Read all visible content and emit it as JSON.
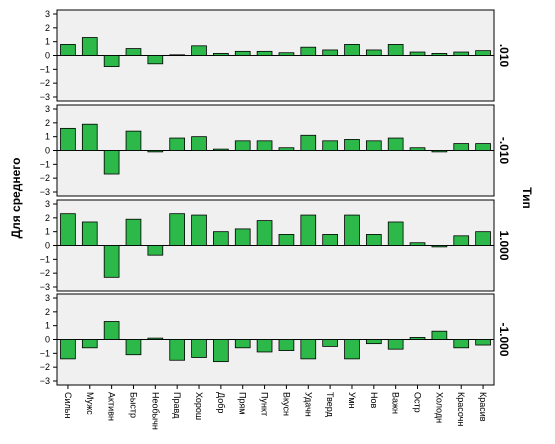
{
  "chart_data": {
    "type": "bar",
    "ylabel": "Для среднего",
    "side_label": "Тип",
    "ylim": [
      -3,
      3
    ],
    "yticks": [
      3,
      2,
      1,
      0,
      -1,
      -2,
      -3
    ],
    "ytick_labels": [
      "3",
      "2",
      "1",
      "0",
      "−1",
      "−2",
      "−3"
    ],
    "bar_color": "#2db84a",
    "panel_bg": "#f0f0f0",
    "categories": [
      "Сильн",
      "Мужс",
      "Активн",
      "Быстр",
      "Необычн",
      "Правд",
      "Хорош",
      "Добр",
      "Прям",
      "Пункт",
      "Вкусн",
      "Удачн",
      "Тверд",
      "Умн",
      "Нов",
      "Важн",
      "Остр",
      "Холодн",
      "Красочн",
      "Красив"
    ],
    "panels": [
      {
        "label": ".010",
        "values": [
          0.8,
          1.3,
          -0.8,
          0.5,
          -0.6,
          0.05,
          0.7,
          0.15,
          0.3,
          0.3,
          0.2,
          0.6,
          0.4,
          0.8,
          0.4,
          0.8,
          0.25,
          0.15,
          0.25,
          0.35
        ]
      },
      {
        "label": "-.010",
        "values": [
          1.6,
          1.9,
          -1.7,
          1.4,
          -0.1,
          0.9,
          1.0,
          0.1,
          0.7,
          0.7,
          0.2,
          1.1,
          0.7,
          0.8,
          0.7,
          0.9,
          0.2,
          -0.1,
          0.5,
          0.5
        ]
      },
      {
        "label": "1.000",
        "values": [
          2.3,
          1.7,
          -2.3,
          1.9,
          -0.7,
          2.3,
          2.2,
          1.0,
          1.2,
          1.8,
          0.8,
          2.2,
          0.8,
          2.2,
          0.8,
          1.7,
          0.2,
          -0.1,
          0.7,
          1.0
        ]
      },
      {
        "label": "-1.000",
        "values": [
          -1.4,
          -0.6,
          1.3,
          -1.1,
          0.1,
          -1.5,
          -1.3,
          -1.6,
          -0.6,
          -0.9,
          -0.8,
          -1.4,
          -0.5,
          -1.4,
          -0.3,
          -0.7,
          0.15,
          0.6,
          -0.6,
          -0.4
        ]
      }
    ]
  }
}
